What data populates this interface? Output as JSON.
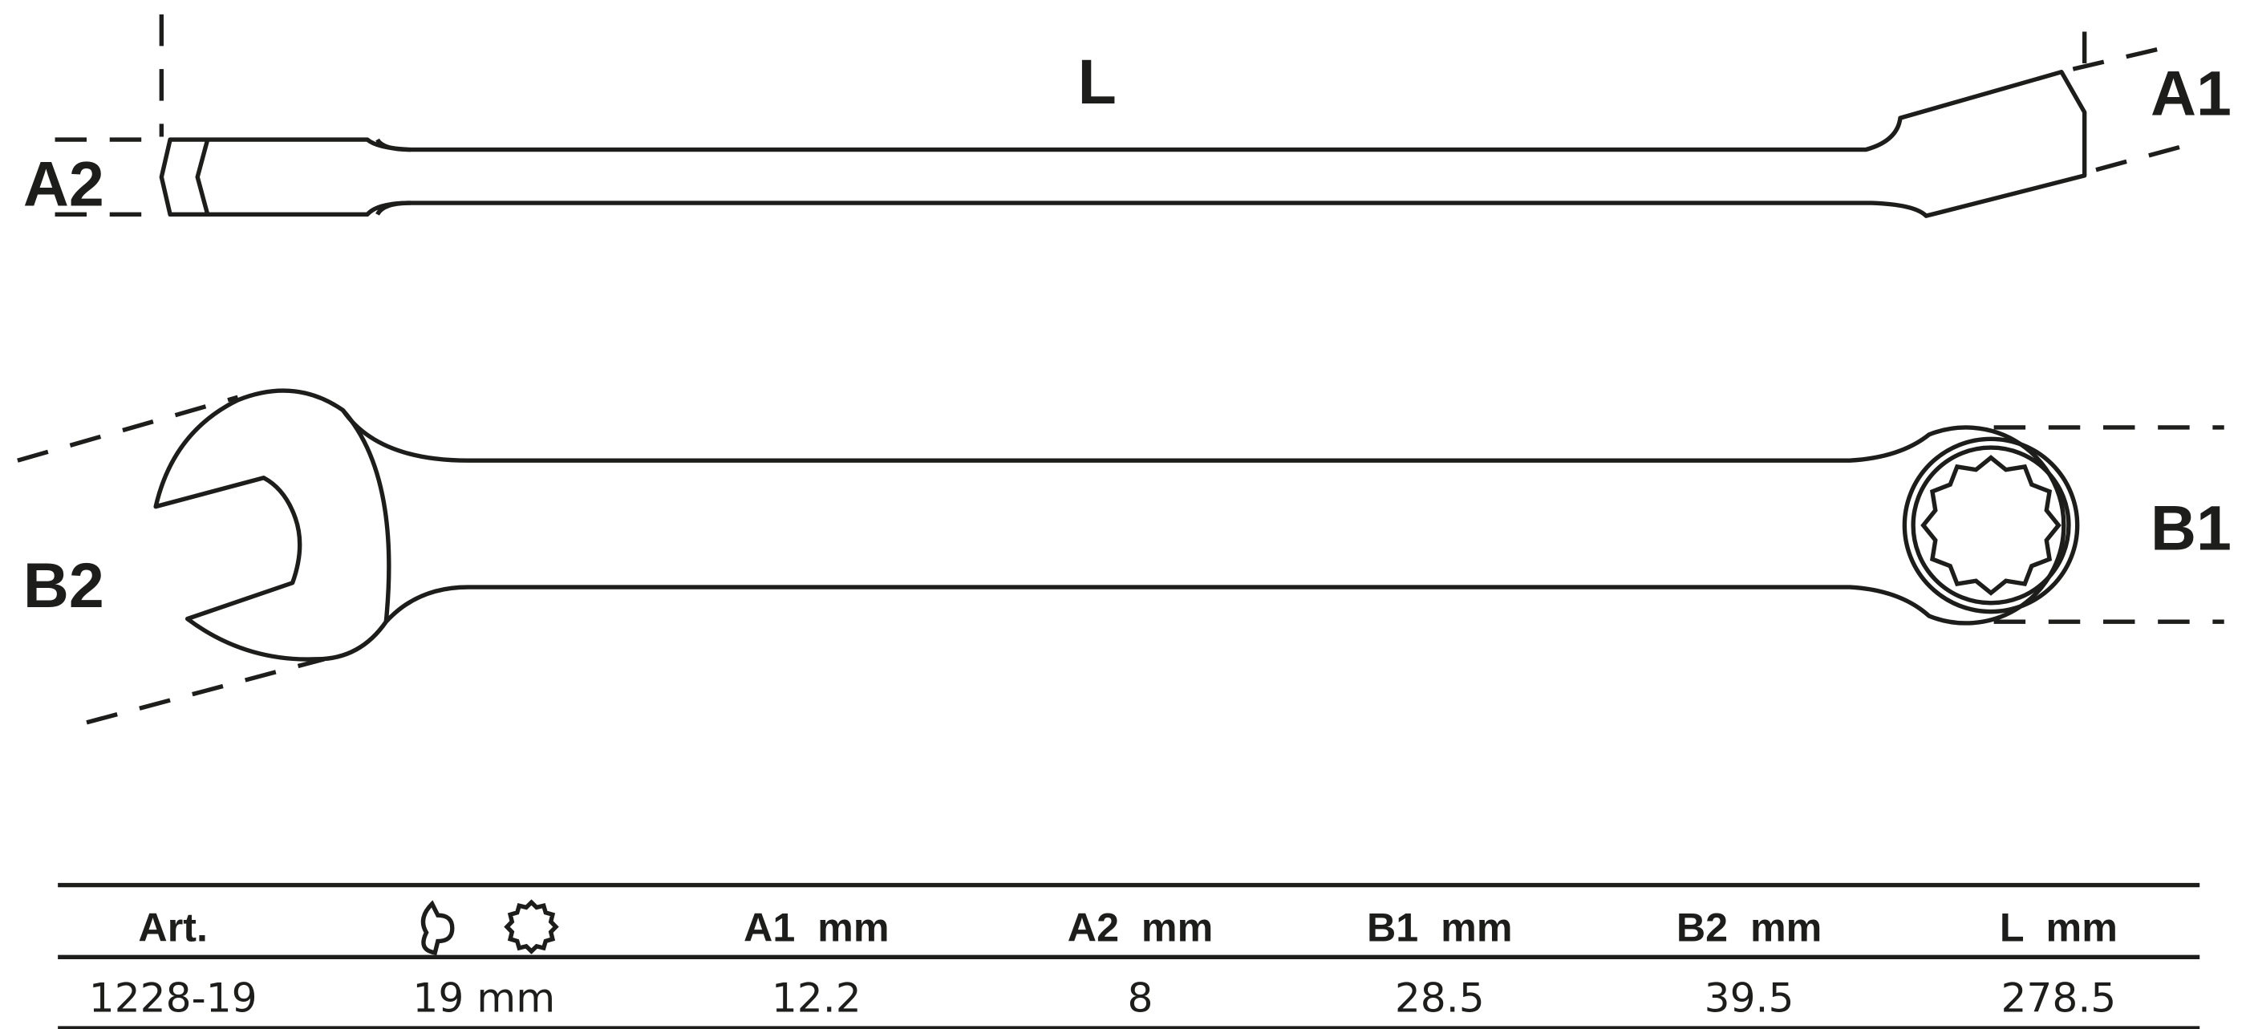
{
  "drawing": {
    "labels": {
      "L": "L",
      "A1": "A1",
      "A2": "A2",
      "B1": "B1",
      "B2": "B2"
    }
  },
  "table": {
    "headers": [
      "Art.",
      "",
      "A1  mm",
      "A2  mm",
      "B1  mm",
      "B2  mm",
      "L  mm"
    ],
    "header_icon": "combination-wrench-and-12-point-ring-icon",
    "rows": [
      [
        "1228-19",
        "19 mm",
        "12.2",
        "8",
        "28.5",
        "39.5",
        "278.5"
      ]
    ]
  }
}
